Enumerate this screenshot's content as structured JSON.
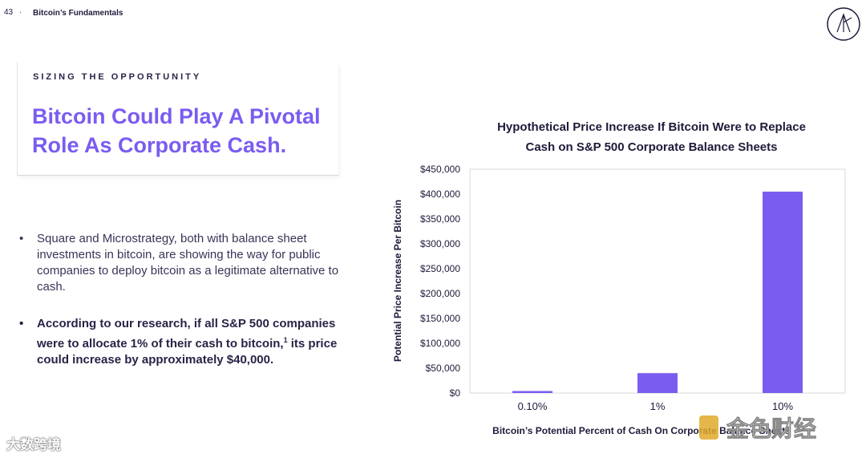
{
  "header": {
    "page_number": "43",
    "separator": "·",
    "section": "Bitcoin’s Fundamentals"
  },
  "slide": {
    "kicker": "SIZING THE OPPORTUNITY",
    "headline_line1": "Bitcoin Could Play A Pivotal",
    "headline_line2": "Role As Corporate Cash.",
    "bullets": [
      {
        "text": "Square and Microstrategy, both with balance sheet investments in bitcoin, are showing the way for public companies to deploy bitcoin as a legitimate alternative to cash."
      },
      {
        "text_before": "According to our research, if all S&P 500 companies were to allocate 1% of their cash to bitcoin,",
        "footnote": "1",
        "text_after": " its price could increase by approximately $40,000."
      }
    ]
  },
  "chart_data": {
    "type": "bar",
    "title_line1": "Hypothetical Price Increase If Bitcoin Were to Replace",
    "title_line2": "Cash on S&P 500 Corporate Balance Sheets",
    "categories": [
      "0.10%",
      "1%",
      "10%"
    ],
    "values": [
      4000,
      40000,
      405000
    ],
    "xlabel": "Bitcoin’s Potential Percent of Cash On Corporate Balance Sheets",
    "ylabel": "Potential Price Increase Per Bitcoin",
    "ylim": [
      0,
      450000
    ],
    "yticks": [
      0,
      50000,
      100000,
      150000,
      200000,
      250000,
      300000,
      350000,
      400000,
      450000
    ],
    "ytick_labels": [
      "$0",
      "$50,000",
      "$100,000",
      "$150,000",
      "$200,000",
      "$250,000",
      "$300,000",
      "$350,000",
      "$400,000",
      "$450,000"
    ],
    "bar_color": "#7b5cf0",
    "grid": false
  },
  "watermark": {
    "left_text": "大数跨境",
    "right_text": "金色财经"
  }
}
